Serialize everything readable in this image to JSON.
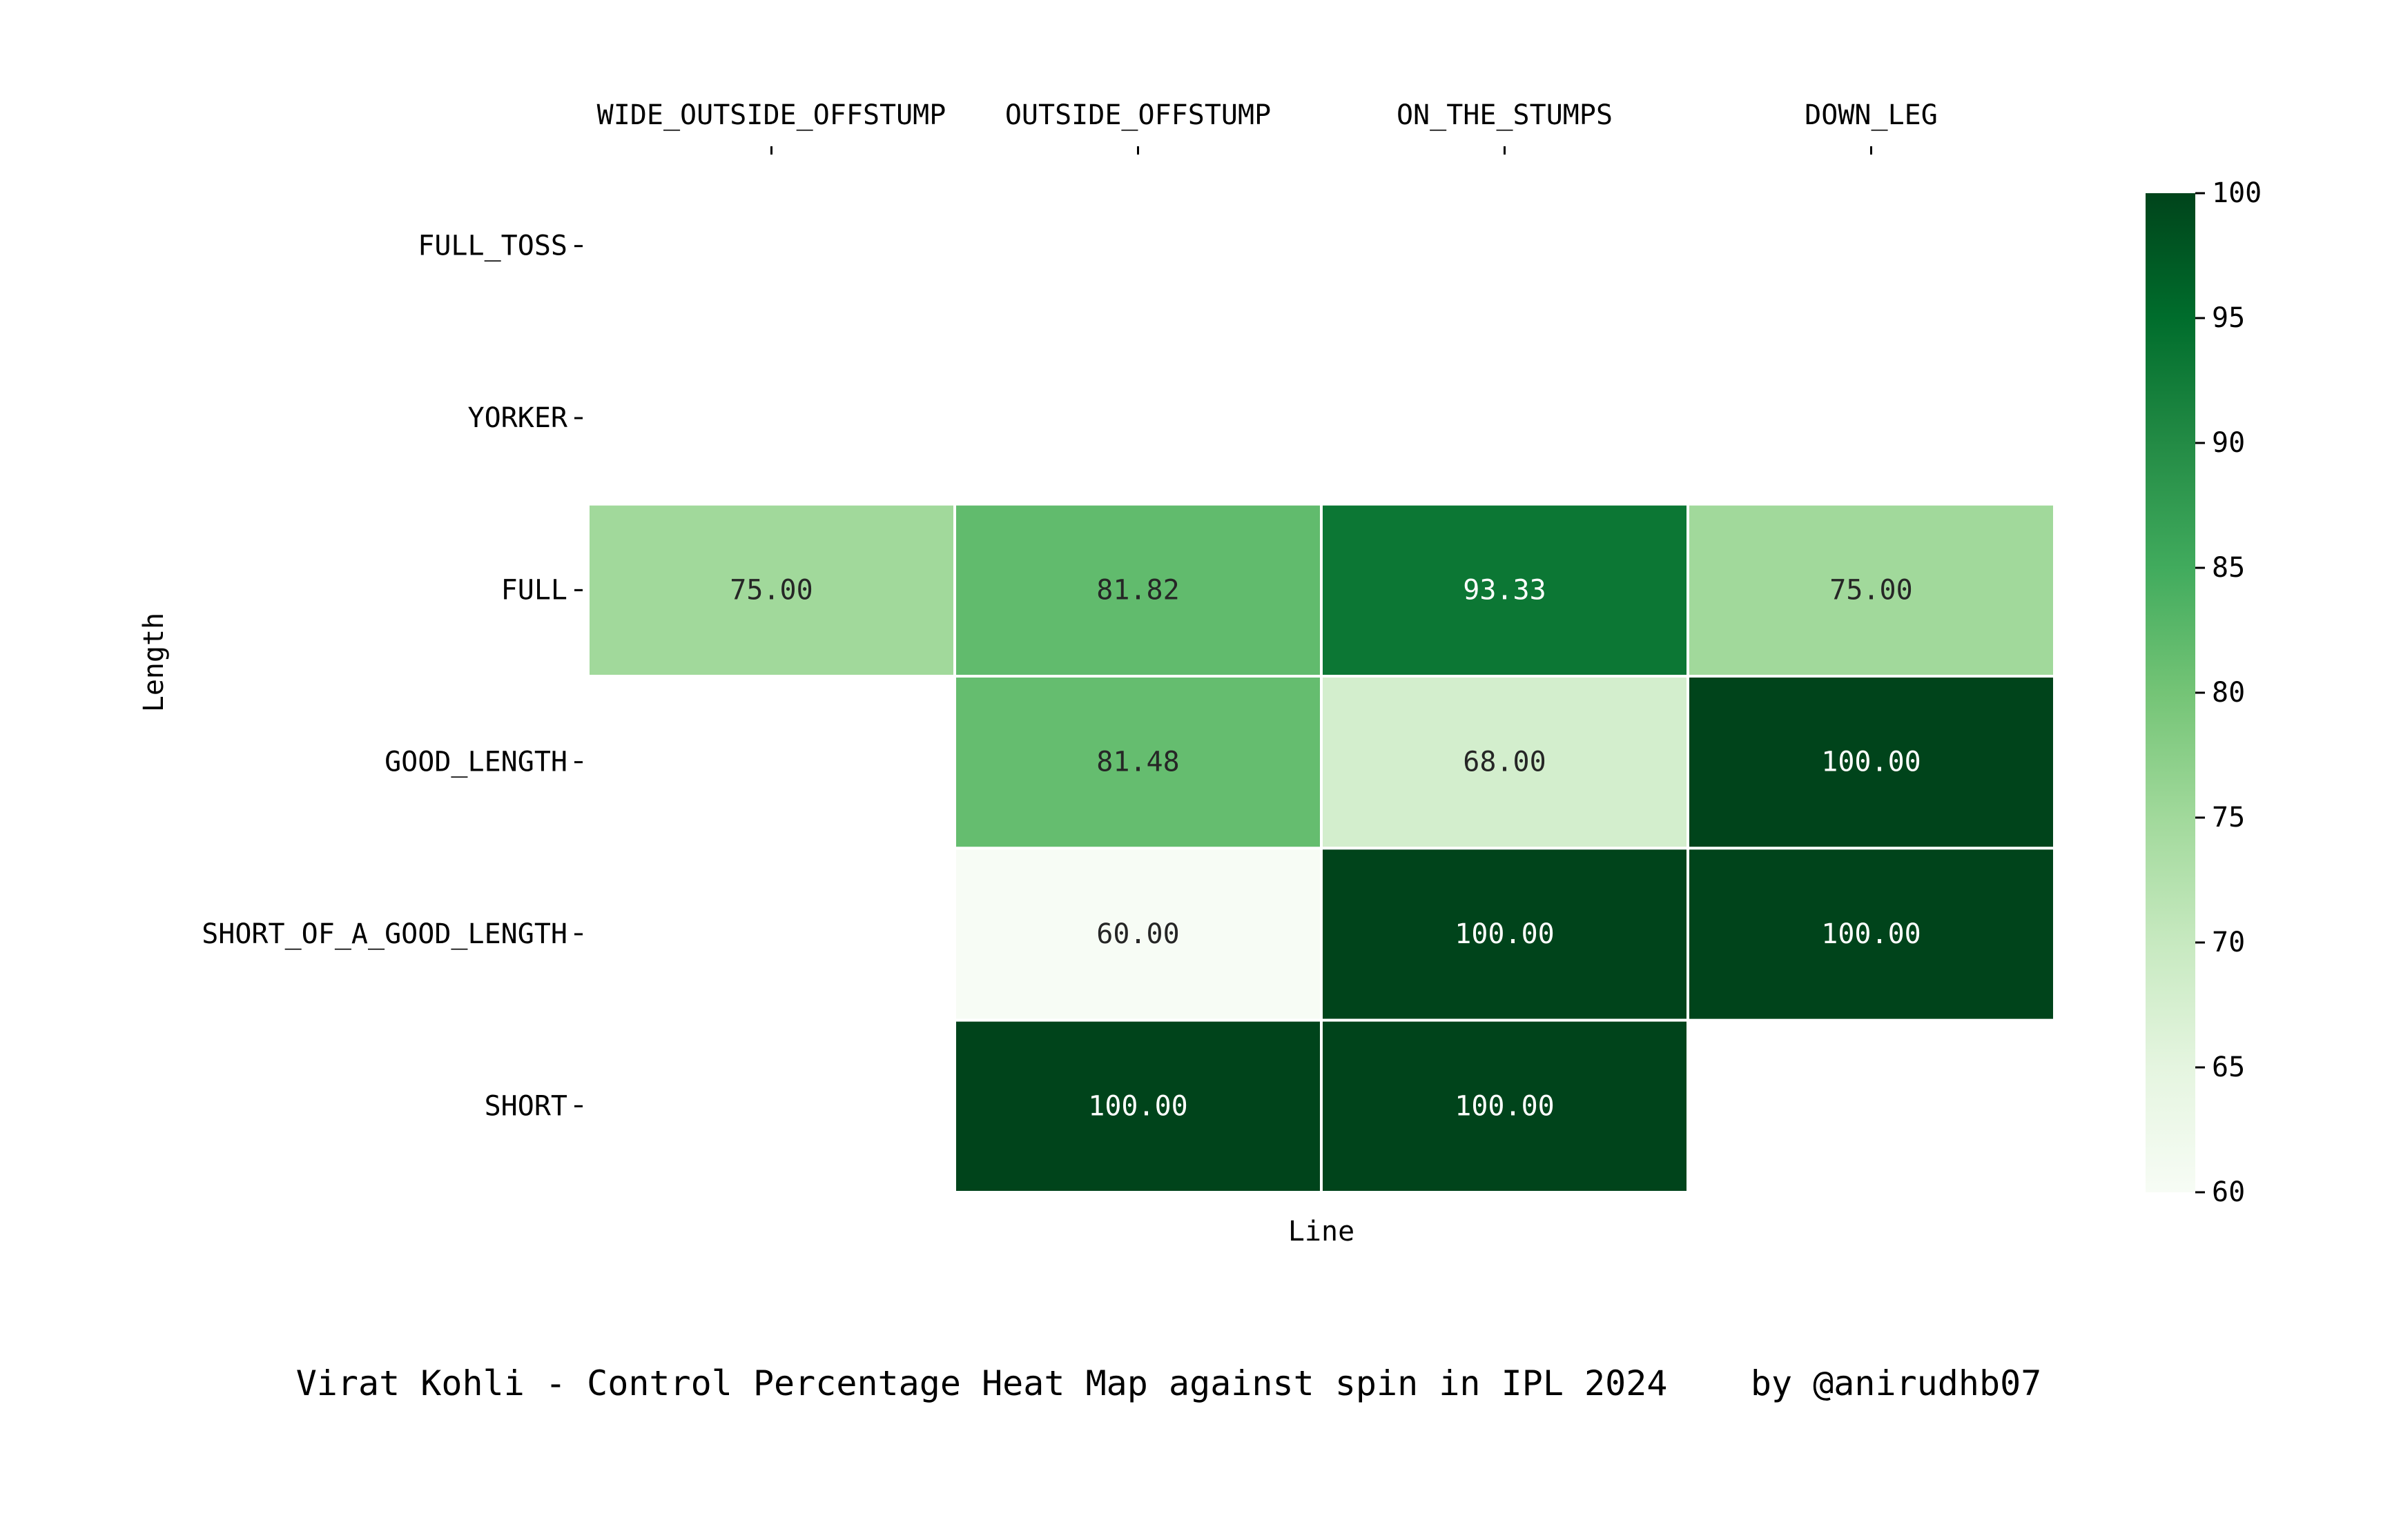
{
  "chart_data": {
    "type": "heatmap",
    "title": "",
    "xlabel": "Line",
    "ylabel": "Length",
    "x_categories": [
      "WIDE_OUTSIDE_OFFSTUMP",
      "OUTSIDE_OFFSTUMP",
      "ON_THE_STUMPS",
      "DOWN_LEG"
    ],
    "y_categories": [
      "FULL_TOSS",
      "YORKER",
      "FULL",
      "GOOD_LENGTH",
      "SHORT_OF_A_GOOD_LENGTH",
      "SHORT"
    ],
    "values": [
      [
        null,
        null,
        null,
        null
      ],
      [
        null,
        null,
        null,
        null
      ],
      [
        75.0,
        81.82,
        93.33,
        75.0
      ],
      [
        null,
        81.48,
        68.0,
        100.0
      ],
      [
        null,
        60.0,
        100.0,
        100.0
      ],
      [
        null,
        100.0,
        100.0,
        null
      ]
    ],
    "value_format": "2 decimals",
    "colormap": "Greens",
    "colorbar": {
      "min": 60,
      "max": 100,
      "ticks": [
        "60",
        "65",
        "70",
        "75",
        "80",
        "85",
        "90",
        "95",
        "100"
      ]
    },
    "x_tick_position": "top",
    "caption": "Virat Kohli - Control Percentage Heat Map against spin in IPL 2024    by @anirudhb07"
  }
}
